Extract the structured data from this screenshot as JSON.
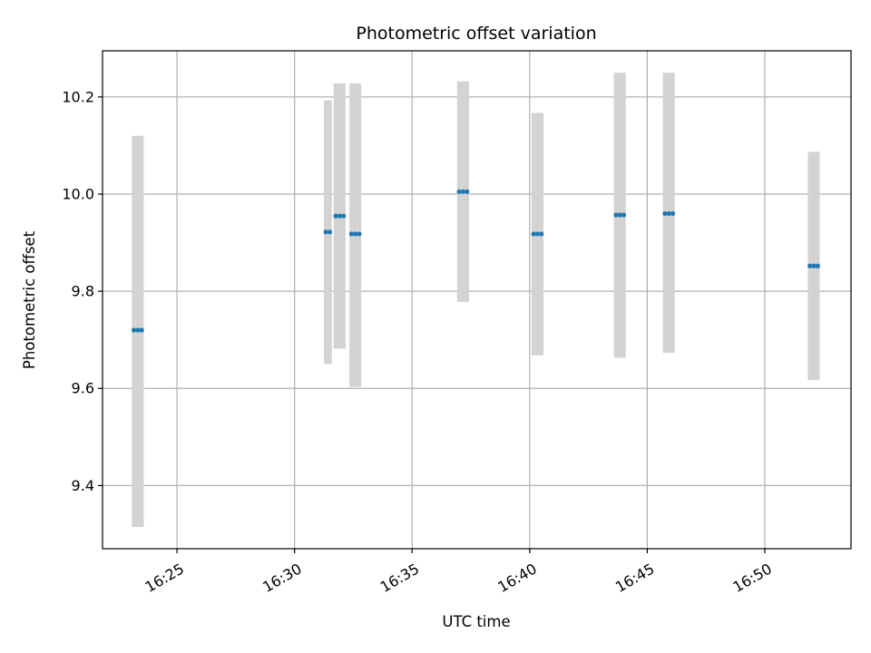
{
  "chart_data": {
    "type": "scatter",
    "title": "Photometric offset variation",
    "xlabel": "UTC time",
    "ylabel": "Photometric offset",
    "xlim": [
      "16:21:50",
      "16:53:40"
    ],
    "ylim": [
      9.27,
      10.295
    ],
    "grid": true,
    "x_ticks": [
      "16:25",
      "16:30",
      "16:35",
      "16:40",
      "16:45",
      "16:50"
    ],
    "y_ticks": [
      "9.4",
      "9.6",
      "9.8",
      "10.0",
      "10.2"
    ],
    "colors": {
      "marker": "#1f77b4",
      "errorbar": "#d3d3d3",
      "grid": "#b0b0b0"
    },
    "groups": [
      {
        "times": [
          "16:23:10",
          "16:23:20",
          "16:23:30"
        ],
        "value": 9.72,
        "err_low": 9.315,
        "err_high": 10.12
      },
      {
        "times": [
          "16:31:20",
          "16:31:30"
        ],
        "value": 9.922,
        "err_low": 9.65,
        "err_high": 10.193
      },
      {
        "times": [
          "16:31:45",
          "16:31:55",
          "16:32:05"
        ],
        "value": 9.955,
        "err_low": 9.682,
        "err_high": 10.228
      },
      {
        "times": [
          "16:32:25",
          "16:32:35",
          "16:32:45"
        ],
        "value": 9.918,
        "err_low": 9.603,
        "err_high": 10.228
      },
      {
        "times": [
          "16:37:00",
          "16:37:10",
          "16:37:20"
        ],
        "value": 10.005,
        "err_low": 9.778,
        "err_high": 10.232
      },
      {
        "times": [
          "16:40:10",
          "16:40:20",
          "16:40:30"
        ],
        "value": 9.918,
        "err_low": 9.668,
        "err_high": 10.167
      },
      {
        "times": [
          "16:43:40",
          "16:43:50",
          "16:44:00"
        ],
        "value": 9.957,
        "err_low": 9.663,
        "err_high": 10.25
      },
      {
        "times": [
          "16:45:45",
          "16:45:55",
          "16:46:05"
        ],
        "value": 9.96,
        "err_low": 9.673,
        "err_high": 10.25
      },
      {
        "times": [
          "16:51:55",
          "16:52:05",
          "16:52:15"
        ],
        "value": 9.852,
        "err_low": 9.617,
        "err_high": 10.087
      }
    ]
  }
}
